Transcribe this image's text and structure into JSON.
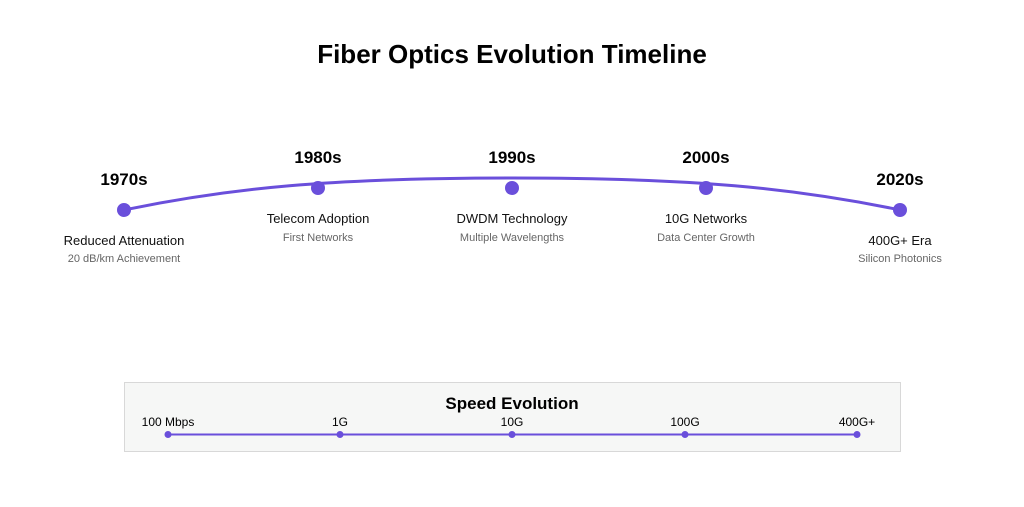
{
  "title": "Fiber Optics Evolution Timeline",
  "accent_color": "#6a4fdb",
  "milestones": [
    {
      "year": "1970s",
      "label": "Reduced Attenuation",
      "sub": "20 dB/km Achievement"
    },
    {
      "year": "1980s",
      "label": "Telecom Adoption",
      "sub": "First Networks"
    },
    {
      "year": "1990s",
      "label": "DWDM Technology",
      "sub": "Multiple Wavelengths"
    },
    {
      "year": "2000s",
      "label": "10G Networks",
      "sub": "Data Center Growth"
    },
    {
      "year": "2020s",
      "label": "400G+ Era",
      "sub": "Silicon Photonics"
    }
  ],
  "speed": {
    "title": "Speed Evolution",
    "steps": [
      "100 Mbps",
      "1G",
      "10G",
      "100G",
      "400G+"
    ]
  }
}
